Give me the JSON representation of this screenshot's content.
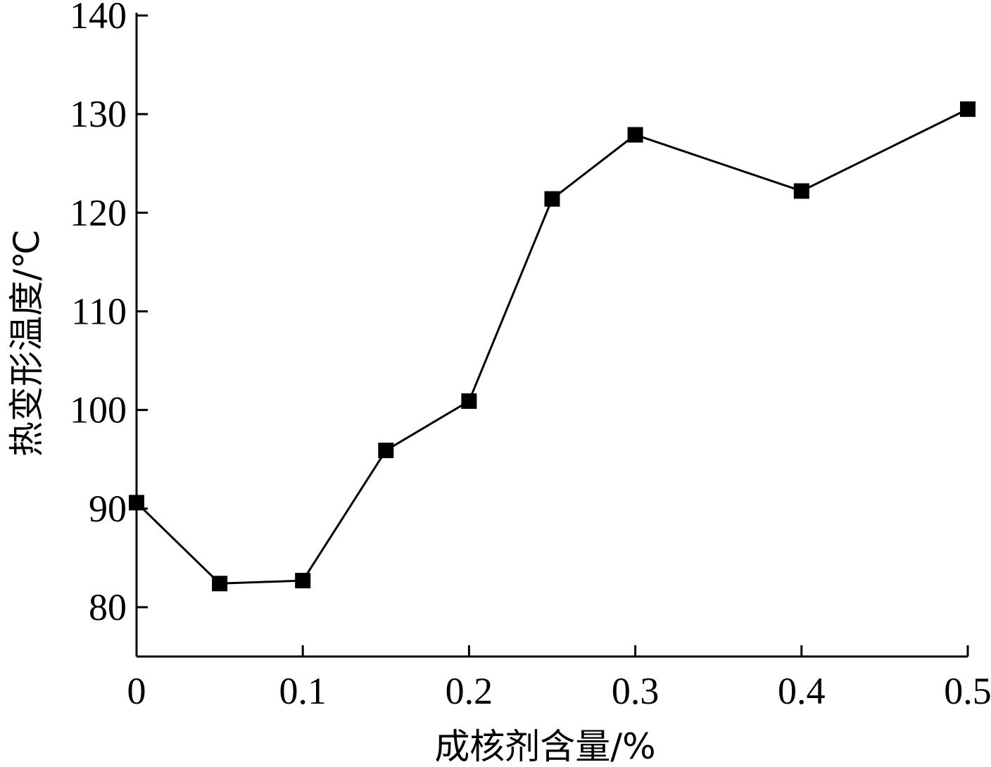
{
  "chart_data": {
    "type": "line",
    "title": "",
    "xlabel": "成核剂含量/%",
    "ylabel": "热变形温度/℃",
    "xlim": [
      0,
      0.5
    ],
    "ylim": [
      75,
      140
    ],
    "xticks": [
      0,
      0.1,
      0.2,
      0.3,
      0.4,
      0.5
    ],
    "xtick_labels": [
      "0",
      "0.1",
      "0.2",
      "0.3",
      "0.4",
      "0.5"
    ],
    "yticks": [
      80,
      90,
      100,
      110,
      120,
      130,
      140
    ],
    "ytick_labels": [
      "80",
      "90",
      "100",
      "110",
      "120",
      "130",
      "140"
    ],
    "grid": false,
    "legend": "none",
    "series": [
      {
        "marker": "square",
        "color": "#000000",
        "x": [
          0,
          0.05,
          0.1,
          0.15,
          0.2,
          0.25,
          0.3,
          0.4,
          0.5
        ],
        "y": [
          90.6,
          82.4,
          82.7,
          95.9,
          100.9,
          121.4,
          127.9,
          122.2,
          130.5
        ]
      }
    ]
  }
}
